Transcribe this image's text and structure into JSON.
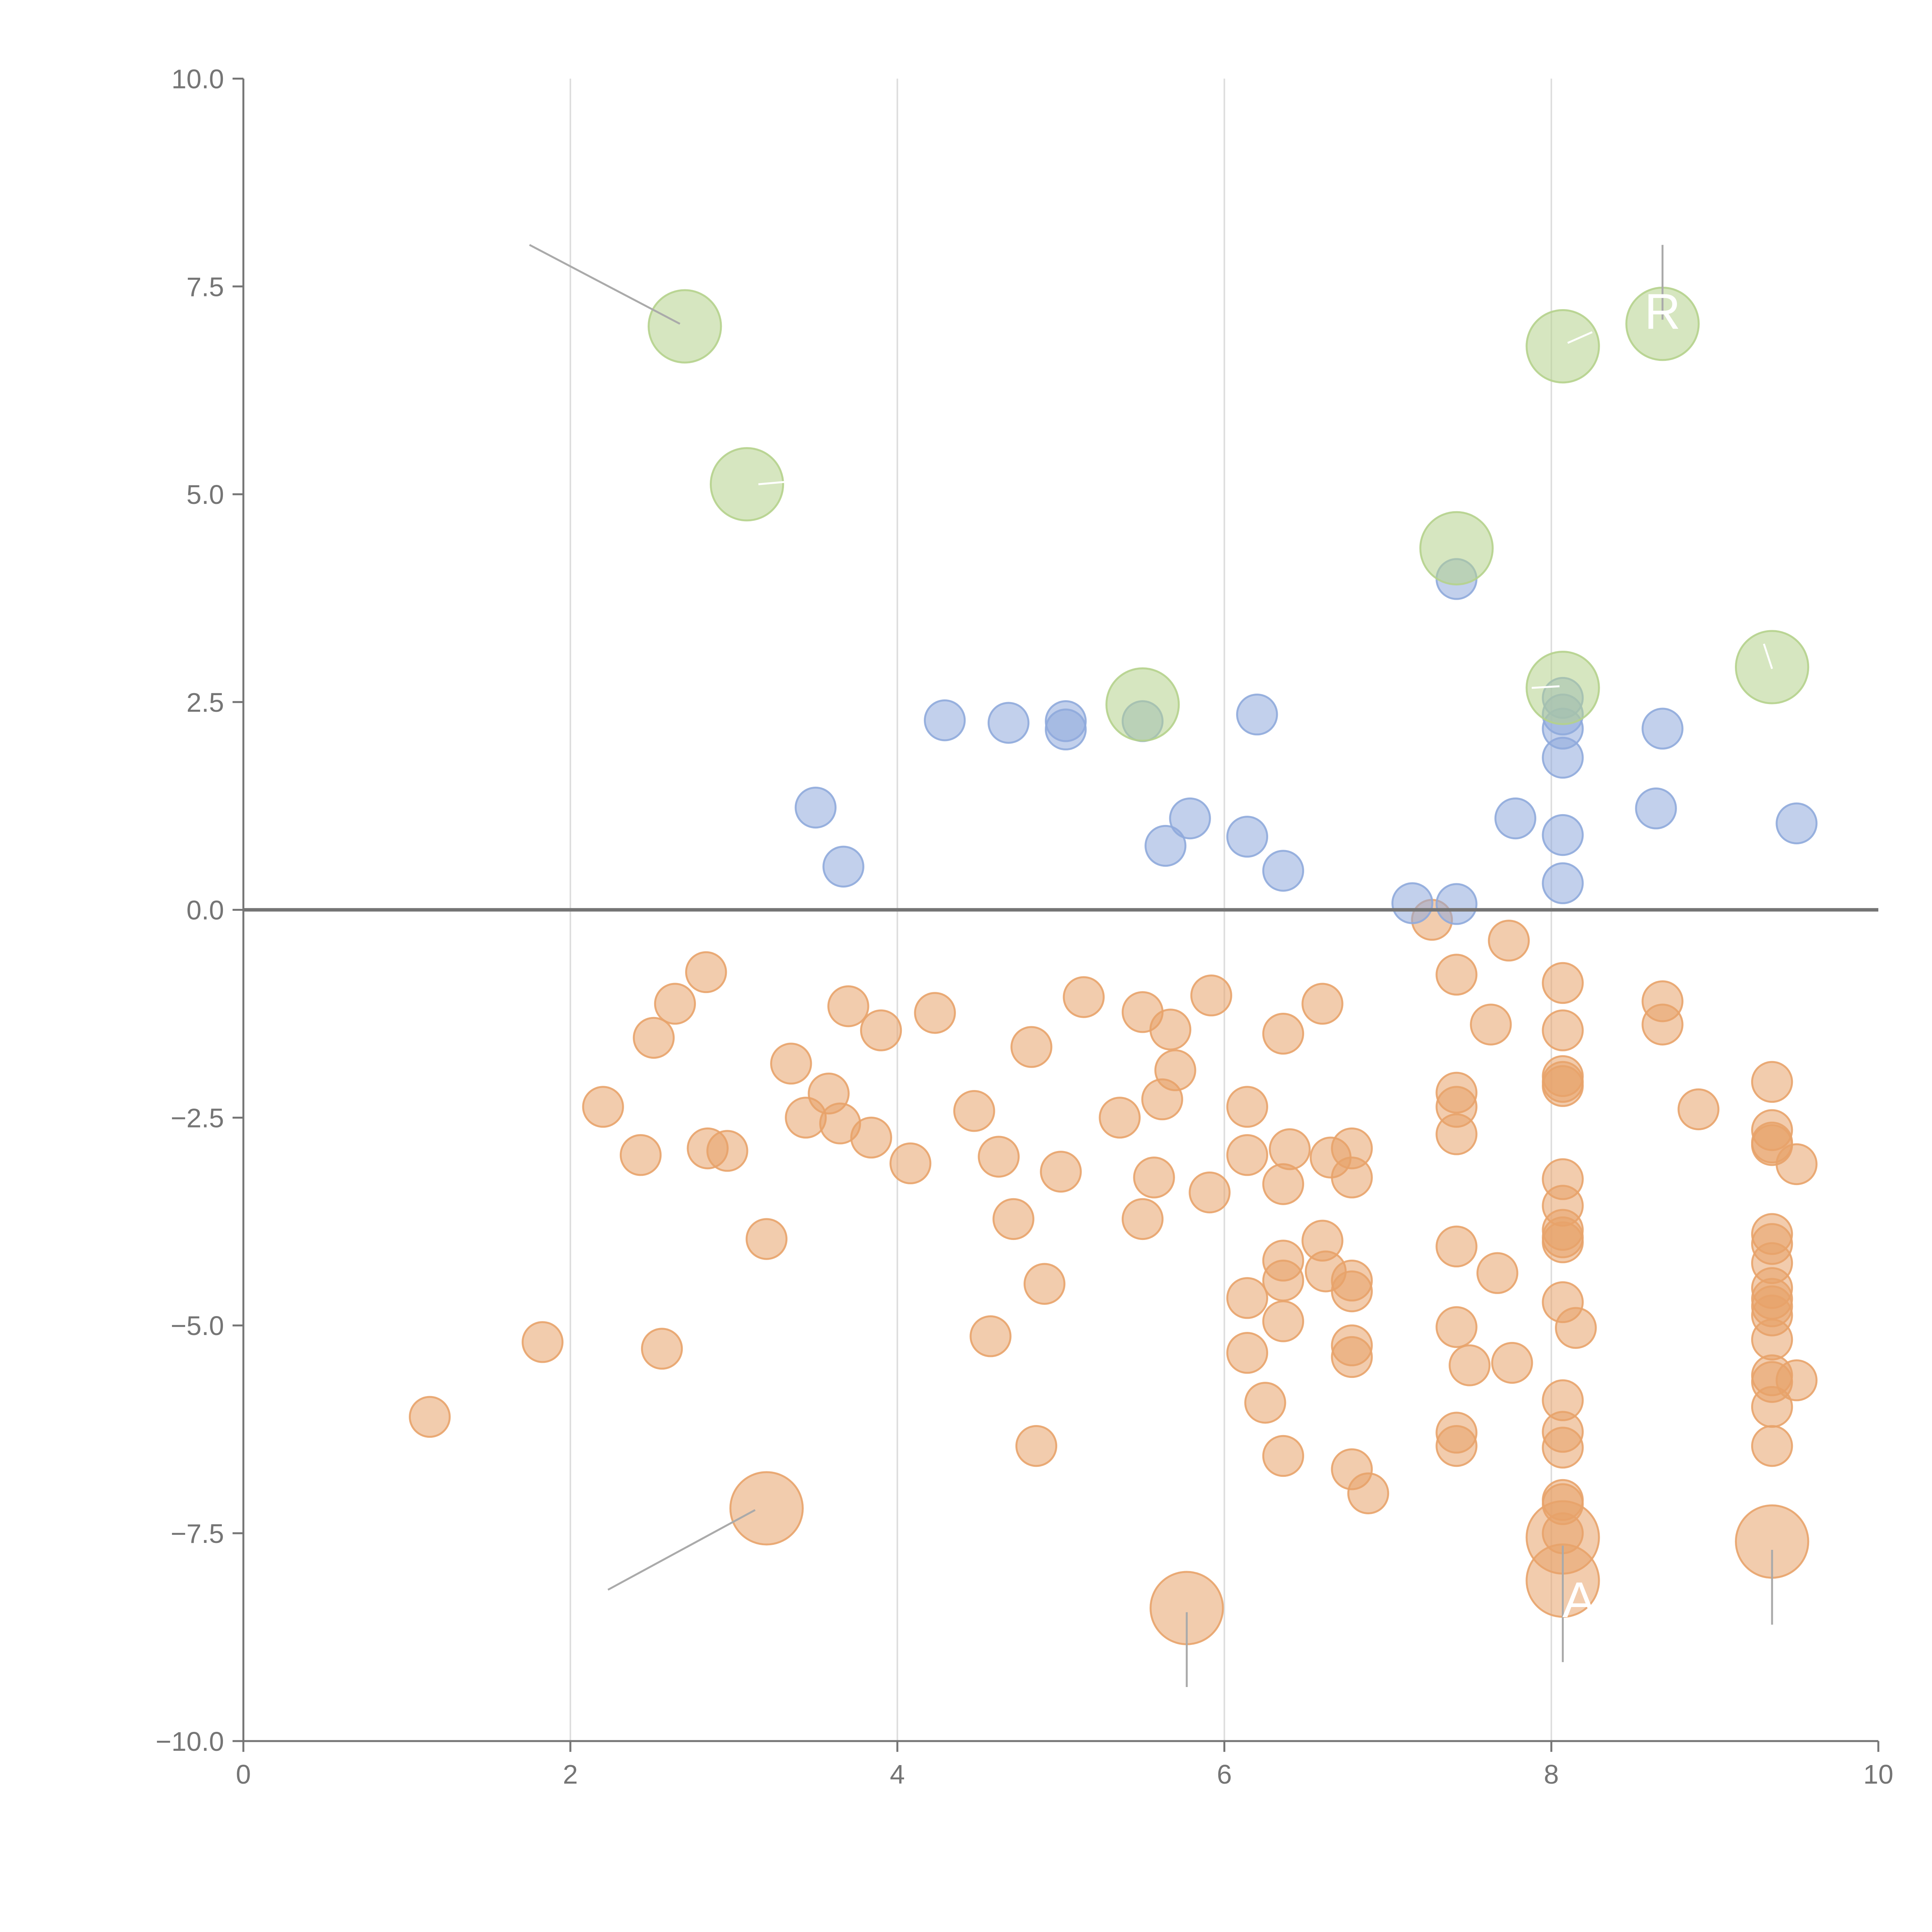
{
  "chart_data": {
    "type": "scatter",
    "title": "",
    "xlabel": "",
    "ylabel": "",
    "xlim": [
      0,
      10
    ],
    "ylim": [
      -10,
      10
    ],
    "x_ticks": [
      0,
      2,
      4,
      6,
      8,
      10
    ],
    "x_tick_labels": [
      "0",
      "2",
      "4",
      "6",
      "8",
      "10"
    ],
    "y_ticks": [
      -10,
      -7.5,
      -5,
      -2.5,
      0,
      2.5,
      5,
      7.5,
      10
    ],
    "y_tick_labels": [
      "−10.0",
      "−7.5",
      "−5.0",
      "−2.5",
      "0.0",
      "2.5",
      "5.0",
      "7.5",
      "10.0"
    ],
    "vertical_grid": [
      2,
      4,
      6,
      8
    ],
    "horizontal_reference_line": 0,
    "legend": "none",
    "colors": {
      "orange": "#E8A36A",
      "blue": "#8FAADC",
      "green": "#B5D18C"
    },
    "annotations": [
      {
        "text": "R",
        "x": 8.68,
        "y": 7.2
      },
      {
        "text": "A",
        "x": 8.17,
        "y": -8.3
      }
    ],
    "series": [
      {
        "name": "orange",
        "color": "#E8A36A",
        "size": "small",
        "points": [
          [
            1.14,
            -6.1
          ],
          [
            1.83,
            -5.2
          ],
          [
            2.2,
            -2.37
          ],
          [
            2.43,
            -2.95
          ],
          [
            2.51,
            -1.54
          ],
          [
            2.56,
            -5.28
          ],
          [
            2.64,
            -1.13
          ],
          [
            2.83,
            -0.75
          ],
          [
            2.84,
            -2.87
          ],
          [
            2.96,
            -2.9
          ],
          [
            3.2,
            -3.96
          ],
          [
            3.35,
            -1.85
          ],
          [
            3.44,
            -2.5
          ],
          [
            3.58,
            -2.21
          ],
          [
            3.65,
            -2.57
          ],
          [
            3.7,
            -1.16
          ],
          [
            3.84,
            -2.74
          ],
          [
            3.9,
            -1.45
          ],
          [
            4.08,
            -3.05
          ],
          [
            4.23,
            -1.24
          ],
          [
            4.47,
            -2.42
          ],
          [
            4.57,
            -5.13
          ],
          [
            4.62,
            -2.97
          ],
          [
            4.71,
            -3.72
          ],
          [
            4.82,
            -1.65
          ],
          [
            4.85,
            -6.45
          ],
          [
            4.9,
            -4.5
          ],
          [
            5.0,
            -3.15
          ],
          [
            5.14,
            -1.05
          ],
          [
            5.36,
            -2.5
          ],
          [
            5.5,
            -1.23
          ],
          [
            5.5,
            -3.72
          ],
          [
            5.57,
            -3.22
          ],
          [
            5.62,
            -2.28
          ],
          [
            5.67,
            -1.44
          ],
          [
            5.7,
            -1.93
          ],
          [
            5.91,
            -3.4
          ],
          [
            5.92,
            -1.03
          ],
          [
            6.14,
            -2.37
          ],
          [
            6.14,
            -2.95
          ],
          [
            6.14,
            -4.67
          ],
          [
            6.14,
            -5.33
          ],
          [
            6.25,
            -5.93
          ],
          [
            6.36,
            -1.49
          ],
          [
            6.36,
            -3.3
          ],
          [
            6.36,
            -4.22
          ],
          [
            6.36,
            -4.46
          ],
          [
            6.36,
            -4.95
          ],
          [
            6.36,
            -6.57
          ],
          [
            6.4,
            -2.88
          ],
          [
            6.6,
            -1.13
          ],
          [
            6.6,
            -3.98
          ],
          [
            6.62,
            -4.35
          ],
          [
            6.65,
            -2.98
          ],
          [
            6.78,
            -2.87
          ],
          [
            6.78,
            -3.22
          ],
          [
            6.78,
            -4.46
          ],
          [
            6.78,
            -4.59
          ],
          [
            6.78,
            -5.24
          ],
          [
            6.78,
            -5.38
          ],
          [
            6.78,
            -6.73
          ],
          [
            6.88,
            -7.02
          ],
          [
            7.27,
            -0.12
          ],
          [
            7.42,
            -0.78
          ],
          [
            7.42,
            -2.2
          ],
          [
            7.42,
            -2.37
          ],
          [
            7.42,
            -2.7
          ],
          [
            7.42,
            -4.05
          ],
          [
            7.42,
            -5.02
          ],
          [
            7.42,
            -6.29
          ],
          [
            7.42,
            -6.45
          ],
          [
            7.5,
            -5.48
          ],
          [
            7.63,
            -1.38
          ],
          [
            7.67,
            -4.37
          ],
          [
            7.74,
            -0.37
          ],
          [
            7.76,
            -5.45
          ],
          [
            8.07,
            -0.88
          ],
          [
            8.07,
            -1.45
          ],
          [
            8.07,
            -2.0
          ],
          [
            8.07,
            -2.07
          ],
          [
            8.07,
            -2.12
          ],
          [
            8.07,
            -3.24
          ],
          [
            8.07,
            -3.56
          ],
          [
            8.07,
            -3.85
          ],
          [
            8.07,
            -3.94
          ],
          [
            8.07,
            -4.0
          ],
          [
            8.07,
            -4.72
          ],
          [
            8.07,
            -5.9
          ],
          [
            8.07,
            -6.28
          ],
          [
            8.07,
            -6.47
          ],
          [
            8.07,
            -7.1
          ],
          [
            8.07,
            -7.15
          ],
          [
            8.07,
            -7.5
          ],
          [
            8.15,
            -5.03
          ],
          [
            8.68,
            -1.1
          ],
          [
            8.68,
            -1.38
          ],
          [
            8.9,
            -2.4
          ],
          [
            9.35,
            -2.07
          ],
          [
            9.35,
            -2.65
          ],
          [
            9.35,
            -2.8
          ],
          [
            9.35,
            -2.83
          ],
          [
            9.35,
            -3.9
          ],
          [
            9.35,
            -4.02
          ],
          [
            9.35,
            -4.25
          ],
          [
            9.35,
            -4.55
          ],
          [
            9.35,
            -4.68
          ],
          [
            9.35,
            -4.77
          ],
          [
            9.35,
            -4.88
          ],
          [
            9.35,
            -5.17
          ],
          [
            9.35,
            -5.6
          ],
          [
            9.35,
            -5.68
          ],
          [
            9.35,
            -5.98
          ],
          [
            9.35,
            -6.45
          ],
          [
            9.5,
            -3.06
          ],
          [
            9.5,
            -5.66
          ]
        ]
      },
      {
        "name": "orange-large",
        "color": "#E8A36A",
        "size": "large",
        "points": [
          [
            3.2,
            -7.2
          ],
          [
            5.77,
            -8.4
          ],
          [
            8.07,
            -7.55
          ],
          [
            8.07,
            -8.07
          ],
          [
            9.35,
            -7.6
          ]
        ]
      },
      {
        "name": "blue",
        "color": "#8FAADC",
        "size": "small",
        "points": [
          [
            3.5,
            1.23
          ],
          [
            3.67,
            0.52
          ],
          [
            4.29,
            2.28
          ],
          [
            4.68,
            2.25
          ],
          [
            5.03,
            2.27
          ],
          [
            5.03,
            2.17
          ],
          [
            5.5,
            2.27
          ],
          [
            5.64,
            0.77
          ],
          [
            5.79,
            1.1
          ],
          [
            6.14,
            0.88
          ],
          [
            6.2,
            2.35
          ],
          [
            6.36,
            0.47
          ],
          [
            7.15,
            0.08
          ],
          [
            7.42,
            0.07
          ],
          [
            7.42,
            3.98
          ],
          [
            7.78,
            1.1
          ],
          [
            8.07,
            0.32
          ],
          [
            8.07,
            0.9
          ],
          [
            8.07,
            1.83
          ],
          [
            8.07,
            2.18
          ],
          [
            8.07,
            2.35
          ],
          [
            8.07,
            2.55
          ],
          [
            8.64,
            1.22
          ],
          [
            8.68,
            2.18
          ],
          [
            9.5,
            1.04
          ]
        ]
      },
      {
        "name": "green",
        "color": "#B5D18C",
        "size": "large",
        "points": [
          [
            2.7,
            7.02
          ],
          [
            3.08,
            5.12
          ],
          [
            5.5,
            2.47
          ],
          [
            7.42,
            4.35
          ],
          [
            8.07,
            6.78
          ],
          [
            8.07,
            2.67
          ],
          [
            8.68,
            7.05
          ],
          [
            9.35,
            2.92
          ]
        ]
      }
    ]
  }
}
